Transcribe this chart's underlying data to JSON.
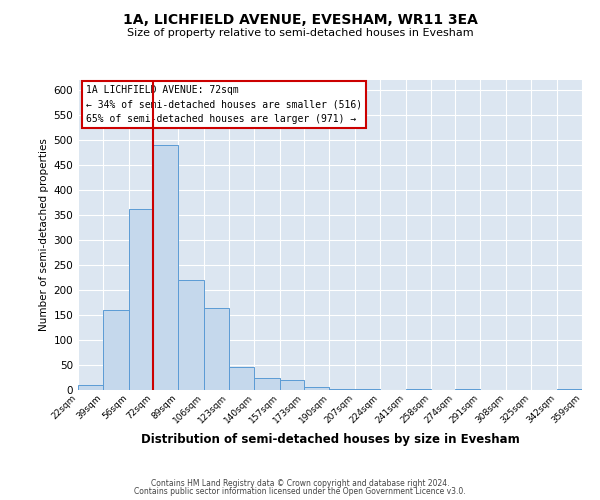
{
  "title": "1A, LICHFIELD AVENUE, EVESHAM, WR11 3EA",
  "subtitle": "Size of property relative to semi-detached houses in Evesham",
  "xlabel": "Distribution of semi-detached houses by size in Evesham",
  "ylabel": "Number of semi-detached properties",
  "bin_edges": [
    22,
    39,
    56,
    72,
    89,
    106,
    123,
    140,
    157,
    173,
    190,
    207,
    224,
    241,
    258,
    274,
    291,
    308,
    325,
    342,
    359
  ],
  "bar_heights": [
    10,
    160,
    363,
    491,
    220,
    165,
    47,
    25,
    20,
    6,
    2,
    2,
    0,
    2,
    0,
    2,
    0,
    0,
    0,
    2
  ],
  "bar_color": "#c5d8ec",
  "bar_edge_color": "#5b9bd5",
  "property_value": 72,
  "property_label": "1A LICHFIELD AVENUE: 72sqm",
  "smaller_pct": 34,
  "smaller_count": 516,
  "larger_pct": 65,
  "larger_count": 971,
  "vline_color": "#cc0000",
  "annotation_box_edge_color": "#cc0000",
  "tick_labels": [
    "22sqm",
    "39sqm",
    "56sqm",
    "72sqm",
    "89sqm",
    "106sqm",
    "123sqm",
    "140sqm",
    "157sqm",
    "173sqm",
    "190sqm",
    "207sqm",
    "224sqm",
    "241sqm",
    "258sqm",
    "274sqm",
    "291sqm",
    "308sqm",
    "325sqm",
    "342sqm",
    "359sqm"
  ],
  "ylim": [
    0,
    620
  ],
  "yticks": [
    0,
    50,
    100,
    150,
    200,
    250,
    300,
    350,
    400,
    450,
    500,
    550,
    600
  ],
  "background_color": "#dce6f1",
  "fig_background": "#ffffff",
  "footer_line1": "Contains HM Land Registry data © Crown copyright and database right 2024.",
  "footer_line2": "Contains public sector information licensed under the Open Government Licence v3.0."
}
